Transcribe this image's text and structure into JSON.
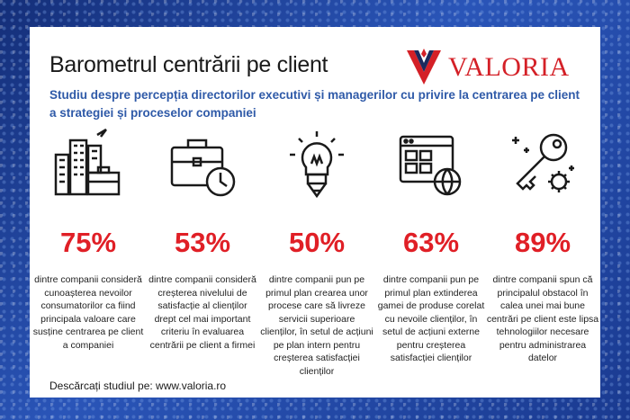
{
  "header": {
    "title": "Barometrul centrării pe client",
    "logo_text": "VALORIA",
    "subtitle": "Studiu despre percepția directorilor executivi și managerilor cu privire la centrarea pe client a strategiei și proceselor companiei"
  },
  "stats": [
    {
      "icon": "city-buildings-icon",
      "value": "75%",
      "text": "dintre companii consideră cunoașterea nevoilor consumatorilor ca fiind principala valoare care susține centrarea pe client a companiei"
    },
    {
      "icon": "briefcase-clock-icon",
      "value": "53%",
      "text": "dintre companii consideră creșterea nivelului de satisfacție al clienților drept cel mai important criteriu în evaluarea centrării pe client a firmei"
    },
    {
      "icon": "lightbulb-pencil-icon",
      "value": "50%",
      "text": "dintre companii pun pe primul plan crearea unor procese care să livreze servicii superioare clienților, în setul de acțiuni pe plan intern pentru creșterea satisfacției clienților"
    },
    {
      "icon": "web-globe-icon",
      "value": "63%",
      "text": "dintre companii pun pe primul plan extinderea gamei de produse corelat cu nevoile clienților, în setul de acțiuni externe pentru creșterea satisfacției clienților"
    },
    {
      "icon": "key-gear-icon",
      "value": "89%",
      "text": "dintre companii spun că principalul obstacol în calea unei mai bune centrări pe client este lipsa tehnologiilor necesare pentru administrarea datelor"
    }
  ],
  "footer": {
    "text": "Descărcați studiul pe: www.valoria.ro"
  },
  "colors": {
    "accent": "#e01f26",
    "subtitle": "#2f5aa8",
    "background": "#1d3f97"
  }
}
